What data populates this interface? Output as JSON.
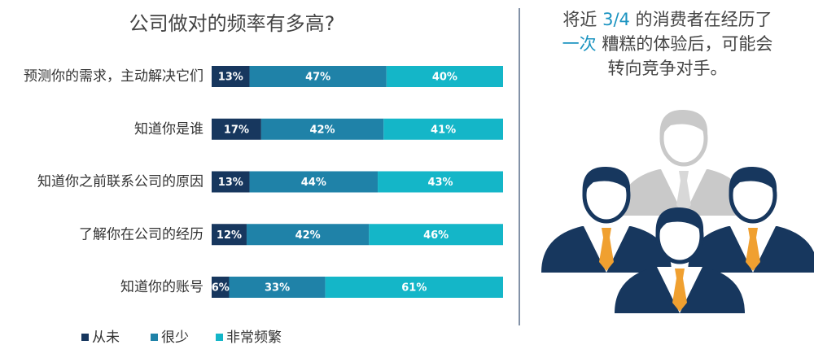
{
  "chart_data": {
    "type": "stacked_barh",
    "title": "公司做对的频率有多高?",
    "categories": [
      "预测你的需求，主动解决它们",
      "知道你是谁",
      "知道你之前联系公司的原因",
      "了解你在公司的经历",
      "知道你的账号"
    ],
    "series": [
      {
        "name": "从未",
        "color": "#17375e",
        "values": [
          13,
          17,
          13,
          12,
          6
        ],
        "value_labels": [
          "13%",
          "17%",
          "13%",
          "12%",
          "6%"
        ]
      },
      {
        "name": "很少",
        "color": "#1f82a8",
        "values": [
          47,
          42,
          44,
          42,
          33
        ],
        "value_labels": [
          "47%",
          "42%",
          "44%",
          "42%",
          "33%"
        ]
      },
      {
        "name": "非常频繁",
        "color": "#14b6c8",
        "values": [
          40,
          41,
          43,
          46,
          61
        ],
        "value_labels": [
          "40%",
          "41%",
          "43%",
          "46%",
          "61%"
        ]
      }
    ],
    "xlim": [
      0,
      100
    ],
    "legend": "bottom"
  },
  "callout": {
    "highlight_color": "#1a93c0",
    "lines": [
      [
        {
          "text": "将近 ",
          "highlight": false
        },
        {
          "text": "3/4",
          "highlight": true
        },
        {
          "text": " 的消费者在经历了",
          "highlight": false
        }
      ],
      [
        {
          "text": "一次",
          "highlight": true
        },
        {
          "text": " 糟糕的体验后，可能会",
          "highlight": false
        }
      ],
      [
        {
          "text": "转向竞争对手。",
          "highlight": false
        }
      ]
    ]
  }
}
